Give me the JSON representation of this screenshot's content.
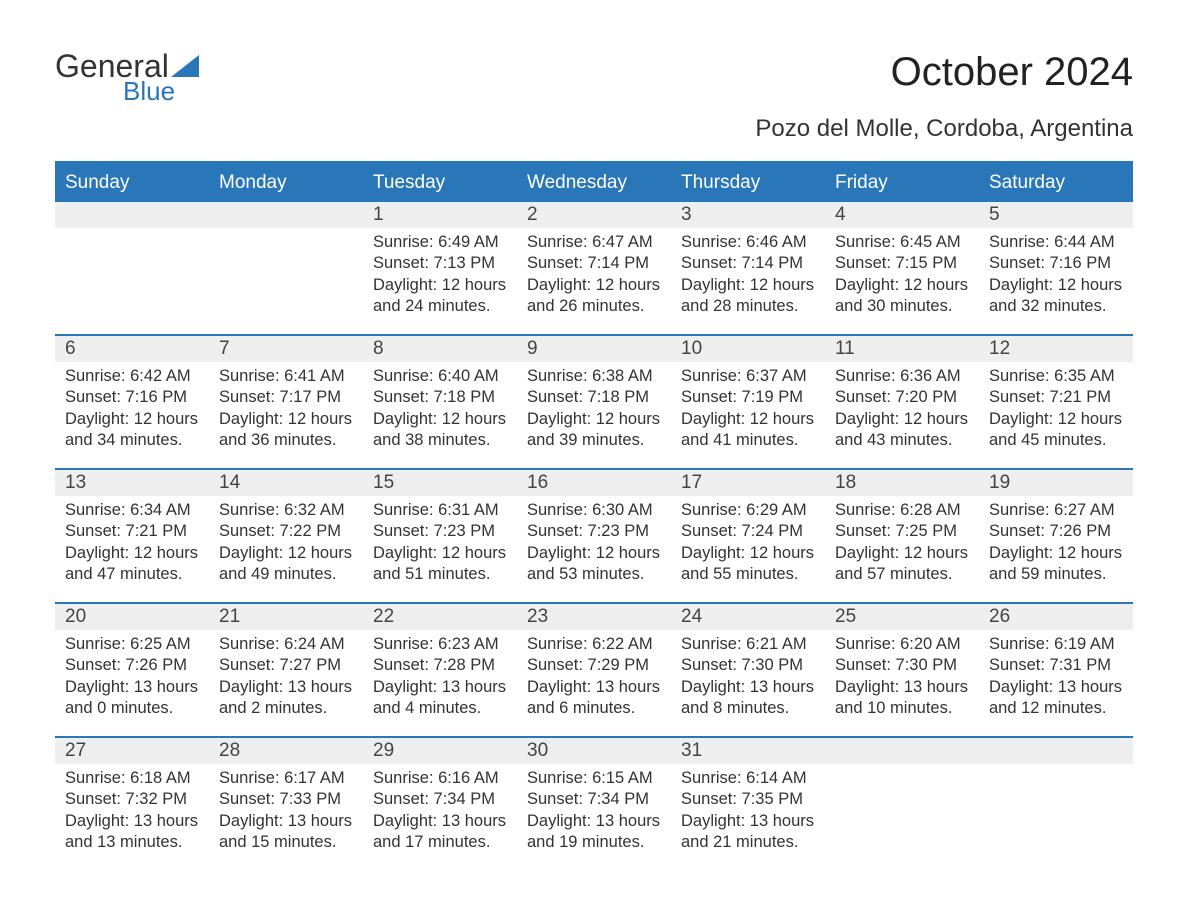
{
  "brand": {
    "word1": "General",
    "word2": "Blue"
  },
  "title": "October 2024",
  "location": "Pozo del Molle, Cordoba, Argentina",
  "colors": {
    "accent": "#2976b8",
    "header_text": "#ffffff",
    "daynum_bg": "#eeeeee",
    "text": "#333333",
    "background": "#ffffff"
  },
  "dayHeaders": [
    "Sunday",
    "Monday",
    "Tuesday",
    "Wednesday",
    "Thursday",
    "Friday",
    "Saturday"
  ],
  "weeks": [
    [
      {
        "empty": true
      },
      {
        "empty": true
      },
      {
        "num": "1",
        "sunrise": "Sunrise: 6:49 AM",
        "sunset": "Sunset: 7:13 PM",
        "d1": "Daylight: 12 hours",
        "d2": "and 24 minutes."
      },
      {
        "num": "2",
        "sunrise": "Sunrise: 6:47 AM",
        "sunset": "Sunset: 7:14 PM",
        "d1": "Daylight: 12 hours",
        "d2": "and 26 minutes."
      },
      {
        "num": "3",
        "sunrise": "Sunrise: 6:46 AM",
        "sunset": "Sunset: 7:14 PM",
        "d1": "Daylight: 12 hours",
        "d2": "and 28 minutes."
      },
      {
        "num": "4",
        "sunrise": "Sunrise: 6:45 AM",
        "sunset": "Sunset: 7:15 PM",
        "d1": "Daylight: 12 hours",
        "d2": "and 30 minutes."
      },
      {
        "num": "5",
        "sunrise": "Sunrise: 6:44 AM",
        "sunset": "Sunset: 7:16 PM",
        "d1": "Daylight: 12 hours",
        "d2": "and 32 minutes."
      }
    ],
    [
      {
        "num": "6",
        "sunrise": "Sunrise: 6:42 AM",
        "sunset": "Sunset: 7:16 PM",
        "d1": "Daylight: 12 hours",
        "d2": "and 34 minutes."
      },
      {
        "num": "7",
        "sunrise": "Sunrise: 6:41 AM",
        "sunset": "Sunset: 7:17 PM",
        "d1": "Daylight: 12 hours",
        "d2": "and 36 minutes."
      },
      {
        "num": "8",
        "sunrise": "Sunrise: 6:40 AM",
        "sunset": "Sunset: 7:18 PM",
        "d1": "Daylight: 12 hours",
        "d2": "and 38 minutes."
      },
      {
        "num": "9",
        "sunrise": "Sunrise: 6:38 AM",
        "sunset": "Sunset: 7:18 PM",
        "d1": "Daylight: 12 hours",
        "d2": "and 39 minutes."
      },
      {
        "num": "10",
        "sunrise": "Sunrise: 6:37 AM",
        "sunset": "Sunset: 7:19 PM",
        "d1": "Daylight: 12 hours",
        "d2": "and 41 minutes."
      },
      {
        "num": "11",
        "sunrise": "Sunrise: 6:36 AM",
        "sunset": "Sunset: 7:20 PM",
        "d1": "Daylight: 12 hours",
        "d2": "and 43 minutes."
      },
      {
        "num": "12",
        "sunrise": "Sunrise: 6:35 AM",
        "sunset": "Sunset: 7:21 PM",
        "d1": "Daylight: 12 hours",
        "d2": "and 45 minutes."
      }
    ],
    [
      {
        "num": "13",
        "sunrise": "Sunrise: 6:34 AM",
        "sunset": "Sunset: 7:21 PM",
        "d1": "Daylight: 12 hours",
        "d2": "and 47 minutes."
      },
      {
        "num": "14",
        "sunrise": "Sunrise: 6:32 AM",
        "sunset": "Sunset: 7:22 PM",
        "d1": "Daylight: 12 hours",
        "d2": "and 49 minutes."
      },
      {
        "num": "15",
        "sunrise": "Sunrise: 6:31 AM",
        "sunset": "Sunset: 7:23 PM",
        "d1": "Daylight: 12 hours",
        "d2": "and 51 minutes."
      },
      {
        "num": "16",
        "sunrise": "Sunrise: 6:30 AM",
        "sunset": "Sunset: 7:23 PM",
        "d1": "Daylight: 12 hours",
        "d2": "and 53 minutes."
      },
      {
        "num": "17",
        "sunrise": "Sunrise: 6:29 AM",
        "sunset": "Sunset: 7:24 PM",
        "d1": "Daylight: 12 hours",
        "d2": "and 55 minutes."
      },
      {
        "num": "18",
        "sunrise": "Sunrise: 6:28 AM",
        "sunset": "Sunset: 7:25 PM",
        "d1": "Daylight: 12 hours",
        "d2": "and 57 minutes."
      },
      {
        "num": "19",
        "sunrise": "Sunrise: 6:27 AM",
        "sunset": "Sunset: 7:26 PM",
        "d1": "Daylight: 12 hours",
        "d2": "and 59 minutes."
      }
    ],
    [
      {
        "num": "20",
        "sunrise": "Sunrise: 6:25 AM",
        "sunset": "Sunset: 7:26 PM",
        "d1": "Daylight: 13 hours",
        "d2": "and 0 minutes."
      },
      {
        "num": "21",
        "sunrise": "Sunrise: 6:24 AM",
        "sunset": "Sunset: 7:27 PM",
        "d1": "Daylight: 13 hours",
        "d2": "and 2 minutes."
      },
      {
        "num": "22",
        "sunrise": "Sunrise: 6:23 AM",
        "sunset": "Sunset: 7:28 PM",
        "d1": "Daylight: 13 hours",
        "d2": "and 4 minutes."
      },
      {
        "num": "23",
        "sunrise": "Sunrise: 6:22 AM",
        "sunset": "Sunset: 7:29 PM",
        "d1": "Daylight: 13 hours",
        "d2": "and 6 minutes."
      },
      {
        "num": "24",
        "sunrise": "Sunrise: 6:21 AM",
        "sunset": "Sunset: 7:30 PM",
        "d1": "Daylight: 13 hours",
        "d2": "and 8 minutes."
      },
      {
        "num": "25",
        "sunrise": "Sunrise: 6:20 AM",
        "sunset": "Sunset: 7:30 PM",
        "d1": "Daylight: 13 hours",
        "d2": "and 10 minutes."
      },
      {
        "num": "26",
        "sunrise": "Sunrise: 6:19 AM",
        "sunset": "Sunset: 7:31 PM",
        "d1": "Daylight: 13 hours",
        "d2": "and 12 minutes."
      }
    ],
    [
      {
        "num": "27",
        "sunrise": "Sunrise: 6:18 AM",
        "sunset": "Sunset: 7:32 PM",
        "d1": "Daylight: 13 hours",
        "d2": "and 13 minutes."
      },
      {
        "num": "28",
        "sunrise": "Sunrise: 6:17 AM",
        "sunset": "Sunset: 7:33 PM",
        "d1": "Daylight: 13 hours",
        "d2": "and 15 minutes."
      },
      {
        "num": "29",
        "sunrise": "Sunrise: 6:16 AM",
        "sunset": "Sunset: 7:34 PM",
        "d1": "Daylight: 13 hours",
        "d2": "and 17 minutes."
      },
      {
        "num": "30",
        "sunrise": "Sunrise: 6:15 AM",
        "sunset": "Sunset: 7:34 PM",
        "d1": "Daylight: 13 hours",
        "d2": "and 19 minutes."
      },
      {
        "num": "31",
        "sunrise": "Sunrise: 6:14 AM",
        "sunset": "Sunset: 7:35 PM",
        "d1": "Daylight: 13 hours",
        "d2": "and 21 minutes."
      },
      {
        "empty": true
      },
      {
        "empty": true
      }
    ]
  ]
}
